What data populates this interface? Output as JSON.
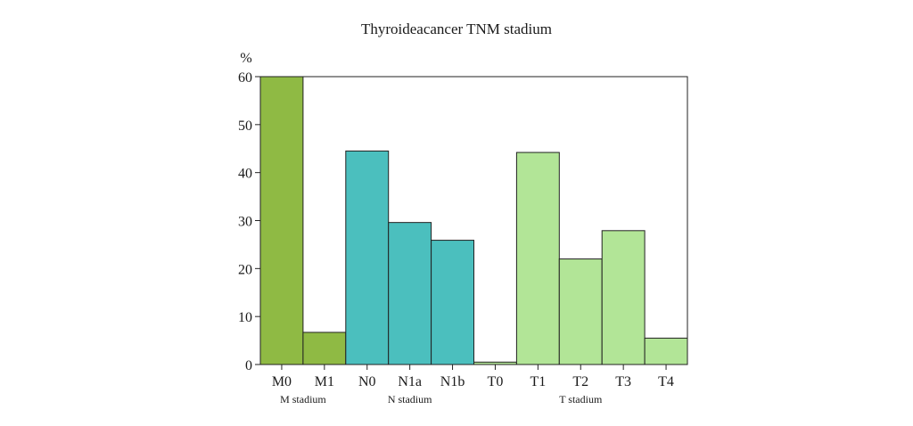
{
  "chart_data": {
    "type": "bar",
    "title": "Thyroideacancer TNM stadium",
    "ylabel": "%",
    "ylim": [
      0,
      60
    ],
    "yticks": [
      0,
      10,
      20,
      30,
      40,
      50,
      60
    ],
    "grid": false,
    "categories": [
      "M0",
      "M1",
      "N0",
      "N1a",
      "N1b",
      "T0",
      "T1",
      "T2",
      "T3",
      "T4"
    ],
    "values": [
      60,
      6.7,
      44.5,
      29.6,
      25.9,
      0.5,
      44.2,
      22,
      27.9,
      5.5
    ],
    "groups": [
      {
        "label": "M stadium",
        "categories": [
          "M0",
          "M1"
        ],
        "color": "#8fba44"
      },
      {
        "label": "N stadium",
        "categories": [
          "N0",
          "N1a",
          "N1b"
        ],
        "color": "#4bbfbe"
      },
      {
        "label": "T stadium",
        "categories": [
          "T0",
          "T1",
          "T2",
          "T3",
          "T4"
        ],
        "color": "#b2e597"
      }
    ]
  }
}
